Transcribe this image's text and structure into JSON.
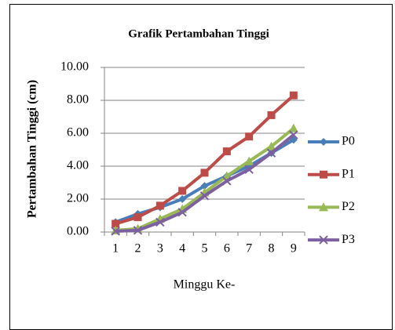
{
  "chart_data": {
    "type": "line",
    "title": "Grafik Pertambahan Tinggi",
    "x_label": "Minggu Ke-",
    "y_label": "Pertambahan Tinggi (cm)",
    "categories": [
      "1",
      "2",
      "3",
      "4",
      "5",
      "6",
      "7",
      "8",
      "9"
    ],
    "series": [
      {
        "name": "P0",
        "color": "#4a7ebb",
        "marker": "diamond",
        "values": [
          0.6,
          1.1,
          1.5,
          2.0,
          2.8,
          3.4,
          4.0,
          4.8,
          5.6
        ]
      },
      {
        "name": "P1",
        "color": "#be4b48",
        "marker": "square",
        "values": [
          0.5,
          0.9,
          1.6,
          2.5,
          3.6,
          4.9,
          5.8,
          7.1,
          8.3
        ]
      },
      {
        "name": "P2",
        "color": "#98b954",
        "marker": "triangle",
        "values": [
          0.1,
          0.2,
          0.8,
          1.4,
          2.4,
          3.4,
          4.3,
          5.2,
          6.3
        ]
      },
      {
        "name": "P3",
        "color": "#7d60a0",
        "marker": "x",
        "values": [
          0.05,
          0.1,
          0.6,
          1.2,
          2.2,
          3.1,
          3.8,
          4.8,
          5.9
        ]
      }
    ],
    "ylim": [
      0,
      10
    ],
    "yticks": [
      {
        "value": 0,
        "label": "0.00"
      },
      {
        "value": 2,
        "label": "2.00"
      },
      {
        "value": 4,
        "label": "4.00"
      },
      {
        "value": 6,
        "label": "6.00"
      },
      {
        "value": 8,
        "label": "8.00"
      },
      {
        "value": 10,
        "label": "10.00"
      }
    ],
    "grid": true,
    "legend": "right"
  }
}
